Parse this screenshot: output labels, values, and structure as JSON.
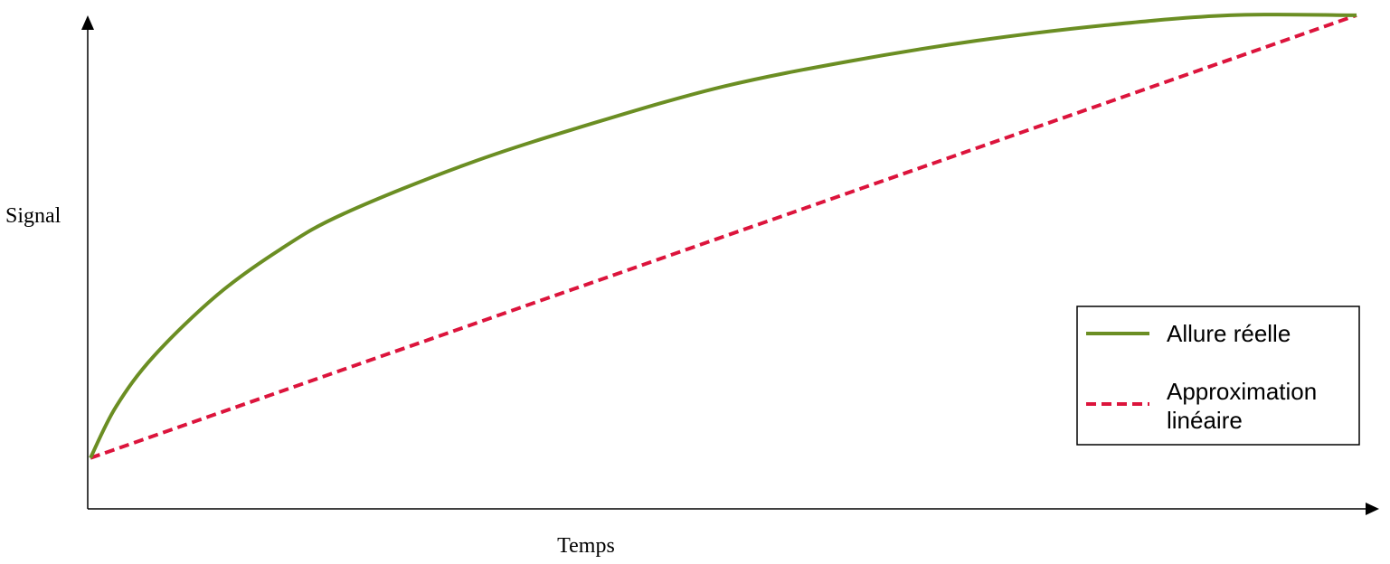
{
  "chart_data": {
    "type": "line",
    "title": "",
    "xlabel": "Temps",
    "ylabel": "Signal",
    "grid": false,
    "legend_position": "right",
    "xlim": [
      0,
      1
    ],
    "ylim": [
      0,
      1
    ],
    "series": [
      {
        "name": "Allure réelle",
        "color": "#6b8e23",
        "style": "solid",
        "x": [
          0,
          0.02,
          0.05,
          0.1,
          0.15,
          0.2,
          0.3,
          0.4,
          0.5,
          0.6,
          0.7,
          0.8,
          0.9,
          1.0
        ],
        "y": [
          0.1,
          0.2,
          0.3,
          0.42,
          0.51,
          0.58,
          0.68,
          0.76,
          0.83,
          0.88,
          0.92,
          0.95,
          0.97,
          0.97
        ]
      },
      {
        "name": "Approximation linéaire",
        "label_lines": [
          "Approximation",
          "linéaire"
        ],
        "color": "#dc143c",
        "style": "dashed",
        "x": [
          0,
          1
        ],
        "y": [
          0.1,
          0.97
        ]
      }
    ]
  },
  "legend": {
    "items": [
      {
        "lines": [
          "Allure réelle"
        ]
      },
      {
        "lines": [
          "Approximation",
          "linéaire"
        ]
      }
    ]
  }
}
